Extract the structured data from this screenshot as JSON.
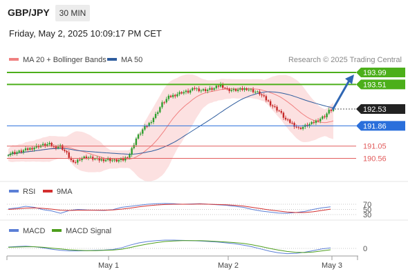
{
  "header": {
    "symbol": "GBP/JPY",
    "timeframe": "30 MIN",
    "timestamp": "Friday, May 2, 2025 10:09:17 PM CET"
  },
  "colors": {
    "up_candle": "#2e9f2e",
    "down_candle": "#c62828",
    "ma20": "#f08080",
    "bollinger_fill": "#fbdada",
    "ma50": "#2f5d9e",
    "target": "#4caf1a",
    "support_blue": "#2a6fdb",
    "resistance_red": "#e25c5c",
    "rsi": "#5b7fd6",
    "rsi_9ma": "#d32f2f",
    "macd": "#5b7fd6",
    "macd_signal": "#4d9e1d",
    "arrow": "#2f66b3",
    "last_price_bg": "#222222"
  },
  "chart_data": [
    {
      "type": "candlestick",
      "title": "",
      "legend": [
        {
          "name": "MA 20 + Bollinger Bands",
          "color": "#f08080"
        },
        {
          "name": "MA 50",
          "color": "#2f5d9e"
        }
      ],
      "legend_position": "top-left",
      "source": "Research © 2025 Trading Central",
      "x_ticks": [
        "May 1",
        "May 2",
        "May 3"
      ],
      "ylim": [
        190.2,
        194.3
      ],
      "levels": [
        {
          "label": "193.99",
          "value": 193.99,
          "kind": "target"
        },
        {
          "label": "193.51",
          "value": 193.51,
          "kind": "target"
        },
        {
          "label": "192.53",
          "value": 192.53,
          "kind": "last"
        },
        {
          "label": "191.86",
          "value": 191.86,
          "kind": "support"
        },
        {
          "label": "191.05",
          "value": 191.05,
          "kind": "resistance"
        },
        {
          "label": "190.56",
          "value": 190.56,
          "kind": "resistance"
        }
      ],
      "price_path": [
        [
          0,
          190.75
        ],
        [
          5,
          190.82
        ],
        [
          10,
          190.95
        ],
        [
          15,
          191.08
        ],
        [
          19,
          191.12
        ],
        [
          21,
          191.02
        ],
        [
          24,
          191.05
        ],
        [
          27,
          190.75
        ],
        [
          30,
          190.35
        ],
        [
          33,
          190.55
        ],
        [
          36,
          190.62
        ],
        [
          39,
          190.55
        ],
        [
          42,
          190.5
        ],
        [
          46,
          190.52
        ],
        [
          49,
          190.46
        ],
        [
          53,
          190.5
        ],
        [
          56,
          190.72
        ],
        [
          59,
          191.35
        ],
        [
          62,
          191.7
        ],
        [
          65,
          191.95
        ],
        [
          68,
          192.3
        ],
        [
          71,
          192.75
        ],
        [
          74,
          193.0
        ],
        [
          77,
          193.1
        ],
        [
          80,
          193.2
        ],
        [
          83,
          193.22
        ],
        [
          86,
          193.35
        ],
        [
          89,
          193.28
        ],
        [
          92,
          193.3
        ],
        [
          95,
          193.35
        ],
        [
          98,
          193.5
        ],
        [
          101,
          193.3
        ],
        [
          104,
          193.28
        ],
        [
          107,
          193.3
        ],
        [
          110,
          193.35
        ],
        [
          113,
          193.25
        ],
        [
          116,
          193.15
        ],
        [
          119,
          192.9
        ],
        [
          122,
          192.65
        ],
        [
          125,
          192.45
        ],
        [
          128,
          192.1
        ],
        [
          131,
          191.95
        ],
        [
          134,
          191.75
        ],
        [
          137,
          191.85
        ],
        [
          140,
          191.95
        ],
        [
          143,
          192.1
        ],
        [
          146,
          192.25
        ],
        [
          148,
          192.45
        ],
        [
          150,
          192.53
        ]
      ],
      "projection": {
        "from": 192.53,
        "to": 193.99
      }
    },
    {
      "type": "line",
      "title": "",
      "legend": [
        {
          "name": "RSI",
          "color": "#5b7fd6"
        },
        {
          "name": "9MA",
          "color": "#d32f2f"
        }
      ],
      "y_ticks": [
        "70",
        "50",
        "30"
      ],
      "ylim": [
        20,
        80
      ],
      "series": [
        {
          "name": "RSI",
          "values": [
            52,
            56,
            62,
            58,
            49,
            44,
            35,
            46,
            50,
            48,
            47,
            46,
            49,
            58,
            62,
            66,
            70,
            72,
            73,
            72,
            70,
            71,
            72,
            70,
            68,
            66,
            62,
            58,
            50,
            44,
            40,
            36,
            35,
            38,
            42,
            50,
            56,
            60
          ]
        },
        {
          "name": "9MA",
          "values": [
            50,
            52,
            55,
            56,
            54,
            51,
            47,
            46,
            47,
            47,
            47,
            47,
            48,
            51,
            55,
            60,
            64,
            67,
            69,
            70,
            70,
            70,
            71,
            70,
            69,
            68,
            66,
            63,
            58,
            53,
            48,
            44,
            40,
            38,
            38,
            41,
            46,
            51
          ]
        }
      ]
    },
    {
      "type": "line",
      "title": "",
      "legend": [
        {
          "name": "MACD",
          "color": "#5b7fd6"
        },
        {
          "name": "MACD Signal",
          "color": "#4d9e1d"
        }
      ],
      "y_ticks": [
        "0"
      ],
      "ylim": [
        -0.5,
        0.5
      ],
      "series": [
        {
          "name": "MACD",
          "values": [
            0.05,
            0.07,
            0.08,
            0.06,
            0.02,
            -0.03,
            -0.07,
            -0.09,
            -0.09,
            -0.08,
            -0.07,
            -0.06,
            -0.04,
            0.02,
            0.12,
            0.2,
            0.25,
            0.28,
            0.3,
            0.3,
            0.29,
            0.28,
            0.27,
            0.25,
            0.23,
            0.2,
            0.17,
            0.12,
            0.06,
            -0.02,
            -0.1,
            -0.16,
            -0.19,
            -0.18,
            -0.14,
            -0.08,
            -0.02,
            0.02
          ]
        },
        {
          "name": "MACD Signal",
          "values": [
            0.04,
            0.05,
            0.06,
            0.06,
            0.04,
            0.01,
            -0.02,
            -0.05,
            -0.07,
            -0.08,
            -0.08,
            -0.07,
            -0.06,
            -0.03,
            0.03,
            0.1,
            0.16,
            0.21,
            0.25,
            0.27,
            0.28,
            0.28,
            0.28,
            0.27,
            0.25,
            0.23,
            0.21,
            0.18,
            0.13,
            0.07,
            0.0,
            -0.06,
            -0.11,
            -0.14,
            -0.15,
            -0.13,
            -0.09,
            -0.05
          ]
        }
      ]
    }
  ]
}
